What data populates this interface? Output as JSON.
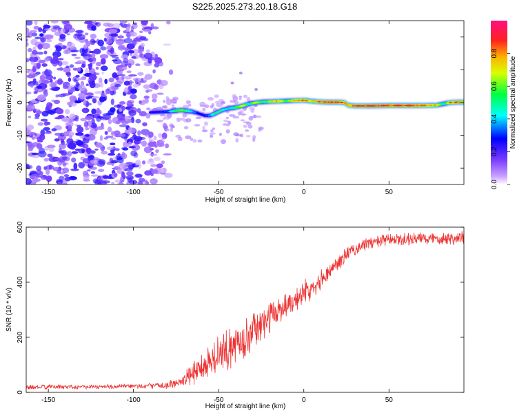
{
  "title": "S225.2025.273.20.18.G18",
  "chart_data": [
    {
      "type": "heatmap",
      "xlabel": "Height of straight line (km)",
      "ylabel": "Frequency (Hz)",
      "xlim": [
        -163,
        94
      ],
      "ylim": [
        -25,
        25
      ],
      "xticks": [
        -150,
        -100,
        -50,
        0,
        50
      ],
      "yticks": [
        -20,
        -10,
        0,
        10,
        20
      ],
      "colorbar_label": "Normalized spectral amplitude",
      "colorbar_ticks": [
        "0.0",
        "0.2",
        "0.4",
        "0.6",
        "0.8"
      ],
      "colorbar_range": [
        0,
        1
      ],
      "noise_region_x": [
        -163,
        -80
      ],
      "signal_track": {
        "x": [
          -90,
          -80,
          -72,
          -66,
          -62,
          -58,
          -55,
          -52,
          -48,
          -44,
          -40,
          -36,
          -32,
          -28,
          -24,
          -20,
          -15,
          -10,
          -5,
          0,
          5,
          10,
          15,
          20,
          24,
          26,
          30,
          40,
          50,
          60,
          70,
          78,
          82,
          86,
          90,
          94
        ],
        "freq": [
          -3.0,
          -2.8,
          -2.3,
          -2.7,
          -3.3,
          -4.0,
          -4.0,
          -3.3,
          -2.3,
          -1.8,
          -1.5,
          -1.0,
          -0.4,
          0.0,
          0.2,
          0.3,
          0.4,
          0.5,
          0.6,
          0.7,
          0.4,
          0.2,
          0.1,
          0.1,
          0.0,
          -0.8,
          -1.0,
          -1.0,
          -0.9,
          -0.9,
          -0.9,
          -0.8,
          -0.4,
          0.0,
          0.1,
          0.1
        ],
        "amplitude": [
          0.3,
          0.35,
          0.7,
          0.45,
          0.3,
          0.3,
          0.4,
          0.55,
          0.5,
          0.45,
          0.6,
          0.75,
          0.5,
          0.75,
          0.55,
          0.7,
          0.85,
          0.6,
          0.85,
          0.9,
          0.8,
          0.9,
          0.95,
          0.95,
          0.9,
          0.85,
          0.9,
          0.95,
          0.92,
          0.95,
          0.9,
          0.8,
          0.5,
          0.85,
          0.9,
          0.8
        ]
      }
    },
    {
      "type": "line",
      "xlabel": "Height of straight line (km)",
      "ylabel": "SNR (10 * v/v)",
      "xlim": [
        -163,
        94
      ],
      "ylim": [
        0,
        600
      ],
      "xticks": [
        -150,
        -100,
        -50,
        0,
        50
      ],
      "yticks": [
        0,
        200,
        400,
        600
      ],
      "color": "#ee3333",
      "series": [
        {
          "name": "SNR",
          "x": [
            -163,
            -150,
            -140,
            -130,
            -120,
            -110,
            -100,
            -90,
            -80,
            -75,
            -70,
            -65,
            -60,
            -55,
            -50,
            -45,
            -40,
            -35,
            -30,
            -25,
            -20,
            -15,
            -10,
            -5,
            0,
            5,
            10,
            15,
            20,
            25,
            30,
            35,
            40,
            50,
            60,
            70,
            80,
            90,
            94
          ],
          "values": [
            18,
            20,
            20,
            21,
            20,
            21,
            22,
            24,
            26,
            33,
            45,
            70,
            95,
            115,
            130,
            150,
            175,
            195,
            220,
            245,
            270,
            300,
            320,
            340,
            360,
            385,
            410,
            440,
            470,
            500,
            520,
            535,
            545,
            552,
            555,
            558,
            560,
            560,
            560
          ],
          "noise": [
            10,
            10,
            10,
            10,
            10,
            10,
            12,
            12,
            14,
            22,
            35,
            55,
            70,
            80,
            85,
            85,
            85,
            80,
            75,
            70,
            65,
            60,
            55,
            55,
            50,
            45,
            40,
            38,
            35,
            32,
            30,
            28,
            28,
            28,
            28,
            28,
            28,
            30,
            30
          ]
        }
      ]
    }
  ]
}
